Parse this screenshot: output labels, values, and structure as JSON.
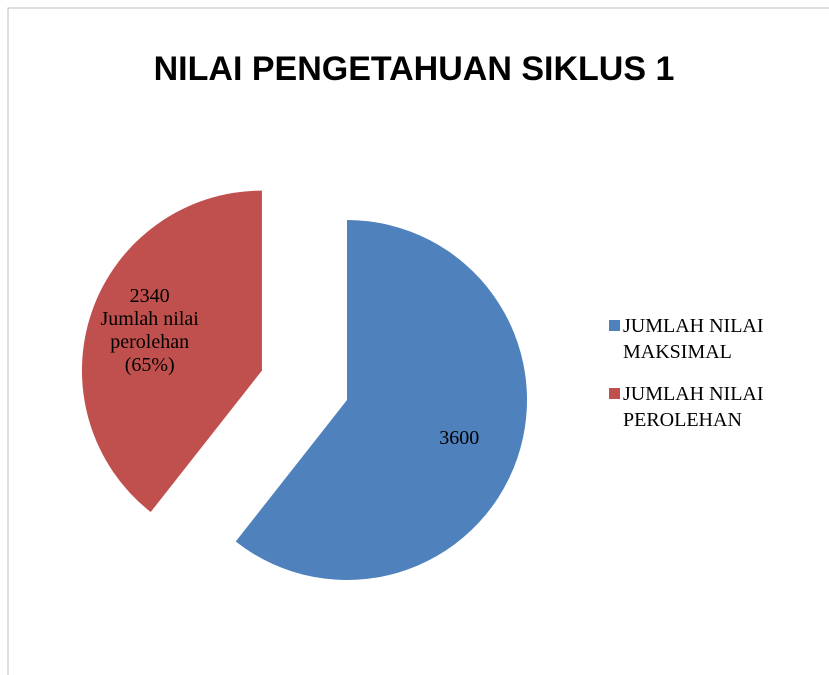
{
  "chart_data": {
    "type": "pie",
    "title": "NILAI PENGETAHUAN SIKLUS 1",
    "categories": [
      "JUMLAH NILAI MAKSIMAL",
      "JUMLAH NILAI PEROLEHAN"
    ],
    "values": [
      3600,
      2340
    ],
    "value_labels": [
      "3600",
      "2340\nJumlah nilai\nperolehan\n(65%)"
    ],
    "colors": [
      "#4f81bd",
      "#c0504d"
    ],
    "legend": "right"
  }
}
